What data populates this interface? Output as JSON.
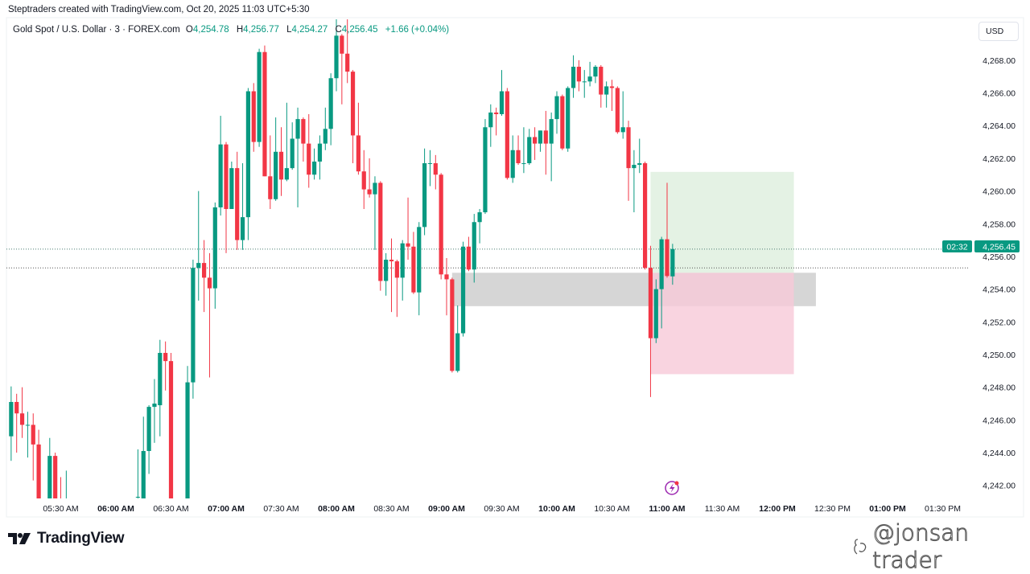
{
  "attribution": "Steptraders created with TradingView.com, Oct 20, 2025 11:03 UTC+5:30",
  "legend": {
    "symbol": "Gold Spot / U.S. Dollar · 3 · FOREX.com",
    "open_key": "O",
    "open": "4,254.78",
    "high_key": "H",
    "high": "4,256.77",
    "low_key": "L",
    "low": "4,254.27",
    "close_key": "C",
    "close": "4,256.45",
    "change": "+1.66 (+0.04%)"
  },
  "currency_button": "USD",
  "current_price_label": {
    "price": "4,256.45",
    "countdown": "02:32"
  },
  "logo": {
    "text": "TradingView",
    "icon": "tradingview-logo-icon"
  },
  "watermark": {
    "text": "@jonsan trader",
    "icon": "social-logo-icon"
  },
  "events_icon": "lightning-events-icon",
  "colors": {
    "up": "#089981",
    "down": "#F23645",
    "zone": "#c8c8c8",
    "target": "#dff0df",
    "stop": "#f8c9d8",
    "accent": "#9c27b0"
  },
  "chart_data": {
    "type": "candlestick",
    "interval": "3",
    "symbol": "Gold Spot / U.S. Dollar",
    "ylim": [
      4241.2,
      4270.6
    ],
    "y_ticks": [
      "4,268.00",
      "4,266.00",
      "4,264.00",
      "4,262.00",
      "4,260.00",
      "4,258.00",
      "4,256.00",
      "4,254.00",
      "4,252.00",
      "4,250.00",
      "4,248.00",
      "4,246.00",
      "4,244.00",
      "4,242.00"
    ],
    "x_ticks": [
      {
        "label": "05:30 AM",
        "bold": false
      },
      {
        "label": "06:00 AM",
        "bold": true
      },
      {
        "label": "06:30 AM",
        "bold": false
      },
      {
        "label": "07:00 AM",
        "bold": true
      },
      {
        "label": "07:30 AM",
        "bold": false
      },
      {
        "label": "08:00 AM",
        "bold": true
      },
      {
        "label": "08:30 AM",
        "bold": false
      },
      {
        "label": "09:00 AM",
        "bold": true
      },
      {
        "label": "09:30 AM",
        "bold": false
      },
      {
        "label": "10:00 AM",
        "bold": true
      },
      {
        "label": "10:30 AM",
        "bold": false
      },
      {
        "label": "11:00 AM",
        "bold": true
      },
      {
        "label": "11:30 AM",
        "bold": false
      },
      {
        "label": "12:00 PM",
        "bold": true
      },
      {
        "label": "12:30 PM",
        "bold": false
      },
      {
        "label": "01:00 PM",
        "bold": true
      },
      {
        "label": "01:30 PM",
        "bold": false
      }
    ],
    "price_lines": [
      4256.45,
      4255.3
    ],
    "zone": {
      "from": "09:03",
      "to": "12:21",
      "top": 4255.0,
      "bottom": 4252.96
    },
    "long_position": {
      "from": "10:51",
      "to": "12:09",
      "entry": 4255.0,
      "target": 4261.17,
      "stop": 4248.8
    },
    "candles_columns": [
      "time",
      "open",
      "high",
      "low",
      "close"
    ],
    "candles": [
      [
        "05:03",
        4245.0,
        4248.05,
        4243.5,
        4247.1
      ],
      [
        "05:06",
        4247.1,
        4247.6,
        4244.0,
        4246.4
      ],
      [
        "05:09",
        4246.4,
        4248.0,
        4244.9,
        4245.7
      ],
      [
        "05:12",
        4245.7,
        4246.5,
        4243.7,
        4245.7
      ],
      [
        "05:15",
        4245.7,
        4246.4,
        4242.3,
        4244.5
      ],
      [
        "05:18",
        4244.5,
        4245.4,
        4240.3,
        4240.5
      ],
      [
        "05:24",
        4240.5,
        4244.9,
        4240.3,
        4243.8
      ],
      [
        "05:27",
        4243.8,
        4244.0,
        4240.3,
        4240.5
      ],
      [
        "05:30",
        4240.6,
        4242.5,
        4240.2,
        4240.5
      ],
      [
        "05:33",
        4240.5,
        4242.9,
        4240.2,
        4240.6
      ],
      [
        "06:12",
        4241.3,
        4244.2,
        4241.2,
        4241.3
      ],
      [
        "06:15",
        4240.5,
        4246.2,
        4240.3,
        4244.1
      ],
      [
        "06:18",
        4244.1,
        4246.9,
        4242.7,
        4246.8
      ],
      [
        "06:21",
        4246.8,
        4248.5,
        4244.6,
        4247.0
      ],
      [
        "06:24",
        4246.9,
        4250.9,
        4245.0,
        4250.1
      ],
      [
        "06:27",
        4250.1,
        4250.8,
        4247.8,
        4249.6
      ],
      [
        "06:30",
        4249.6,
        4250.1,
        4240.3,
        4240.5
      ],
      [
        "06:39",
        4240.5,
        4249.3,
        4240.3,
        4248.3
      ],
      [
        "06:42",
        4248.3,
        4255.8,
        4247.3,
        4255.3
      ],
      [
        "06:45",
        4255.3,
        4260.0,
        4253.3,
        4255.6
      ],
      [
        "06:48",
        4255.6,
        4257.0,
        4252.6,
        4254.7
      ],
      [
        "06:51",
        4254.7,
        4256.2,
        4248.6,
        4254.05
      ],
      [
        "06:54",
        4254.05,
        4259.3,
        4252.8,
        4259.0
      ],
      [
        "06:57",
        4259.0,
        4264.6,
        4258.5,
        4262.85
      ],
      [
        "07:00",
        4262.85,
        4263.0,
        4256.2,
        4258.9
      ],
      [
        "07:03",
        4258.9,
        4261.8,
        4258.9,
        4261.4
      ],
      [
        "07:06",
        4261.4,
        4262.4,
        4256.4,
        4257.0
      ],
      [
        "07:09",
        4257.0,
        4261.7,
        4256.4,
        4258.4
      ],
      [
        "07:12",
        4258.4,
        4266.3,
        4257.0,
        4266.1
      ],
      [
        "07:15",
        4266.1,
        4266.6,
        4262.4,
        4263.0
      ],
      [
        "07:18",
        4263.0,
        4268.7,
        4262.7,
        4268.5
      ],
      [
        "07:21",
        4268.5,
        4268.9,
        4260.9,
        4260.9
      ],
      [
        "07:24",
        4260.9,
        4263.4,
        4258.9,
        4259.5
      ],
      [
        "07:27",
        4259.5,
        4264.5,
        4259.4,
        4262.4
      ],
      [
        "07:30",
        4262.4,
        4263.9,
        4259.7,
        4260.7
      ],
      [
        "07:33",
        4260.7,
        4265.4,
        4260.6,
        4261.4
      ],
      [
        "07:36",
        4261.4,
        4264.2,
        4261.3,
        4263.2
      ],
      [
        "07:39",
        4263.2,
        4265.1,
        4259.0,
        4264.4
      ],
      [
        "07:42",
        4264.4,
        4264.5,
        4261.8,
        4262.9
      ],
      [
        "07:45",
        4262.9,
        4264.7,
        4260.2,
        4261.0
      ],
      [
        "07:48",
        4261.0,
        4262.6,
        4260.7,
        4261.8
      ],
      [
        "07:51",
        4261.8,
        4263.4,
        4260.7,
        4262.9
      ],
      [
        "07:54",
        4262.9,
        4265.1,
        4262.5,
        4263.8
      ],
      [
        "07:57",
        4263.8,
        4267.2,
        4262.8,
        4266.9
      ],
      [
        "08:00",
        4266.9,
        4270.5,
        4266.1,
        4269.5
      ],
      [
        "08:03",
        4269.5,
        4269.6,
        4265.3,
        4268.4
      ],
      [
        "08:06",
        4268.4,
        4270.5,
        4266.6,
        4267.3
      ],
      [
        "08:09",
        4267.3,
        4267.4,
        4261.7,
        4263.4
      ],
      [
        "08:12",
        4263.4,
        4265.4,
        4261.0,
        4261.2
      ],
      [
        "08:15",
        4261.2,
        4262.5,
        4258.9,
        4260.1
      ],
      [
        "08:18",
        4260.1,
        4262.0,
        4259.6,
        4259.8
      ],
      [
        "08:21",
        4259.8,
        4260.9,
        4256.4,
        4260.5
      ],
      [
        "08:24",
        4260.5,
        4260.6,
        4253.9,
        4254.5
      ],
      [
        "08:27",
        4254.5,
        4256.2,
        4253.6,
        4255.8
      ],
      [
        "08:30",
        4255.8,
        4257.1,
        4252.6,
        4255.7
      ],
      [
        "08:33",
        4255.7,
        4255.8,
        4252.3,
        4254.7
      ],
      [
        "08:36",
        4254.7,
        4257.0,
        4253.3,
        4256.8
      ],
      [
        "08:39",
        4256.8,
        4259.6,
        4255.8,
        4256.6
      ],
      [
        "08:42",
        4256.6,
        4257.5,
        4253.7,
        4253.8
      ],
      [
        "08:45",
        4253.8,
        4258.1,
        4252.4,
        4257.8
      ],
      [
        "08:48",
        4257.8,
        4262.6,
        4257.3,
        4261.7
      ],
      [
        "08:51",
        4261.7,
        4262.5,
        4260.3,
        4261.7
      ],
      [
        "08:54",
        4261.7,
        4262.2,
        4260.1,
        4261.0
      ],
      [
        "08:57",
        4261.0,
        4261.1,
        4254.6,
        4254.9
      ],
      [
        "09:00",
        4254.9,
        4255.9,
        4252.4,
        4254.6
      ],
      [
        "09:03",
        4254.6,
        4254.7,
        4248.9,
        4249.0
      ],
      [
        "09:06",
        4249.0,
        4253.0,
        4248.9,
        4251.3
      ],
      [
        "09:09",
        4251.3,
        4256.9,
        4251.1,
        4256.6
      ],
      [
        "09:12",
        4256.6,
        4257.2,
        4255.1,
        4255.2
      ],
      [
        "09:15",
        4255.2,
        4258.6,
        4254.4,
        4258.1
      ],
      [
        "09:18",
        4258.1,
        4258.9,
        4256.8,
        4258.7
      ],
      [
        "09:21",
        4258.7,
        4264.4,
        4258.6,
        4263.9
      ],
      [
        "09:24",
        4263.9,
        4265.3,
        4262.7,
        4264.8
      ],
      [
        "09:27",
        4264.8,
        4265.1,
        4263.4,
        4264.7
      ],
      [
        "09:30",
        4264.7,
        4267.4,
        4264.6,
        4266.1
      ],
      [
        "09:33",
        4266.1,
        4266.3,
        4260.7,
        4260.8
      ],
      [
        "09:36",
        4260.8,
        4263.4,
        4260.5,
        4262.5
      ],
      [
        "09:39",
        4262.5,
        4263.4,
        4261.6,
        4261.7
      ],
      [
        "09:42",
        4261.7,
        4263.9,
        4261.1,
        4261.7
      ],
      [
        "09:45",
        4261.7,
        4263.8,
        4261.6,
        4263.3
      ],
      [
        "09:48",
        4263.3,
        4263.9,
        4261.9,
        4262.9
      ],
      [
        "09:51",
        4262.9,
        4263.7,
        4262.4,
        4263.7
      ],
      [
        "09:54",
        4263.7,
        4264.9,
        4261.0,
        4262.9
      ],
      [
        "09:57",
        4262.9,
        4264.8,
        4260.6,
        4264.4
      ],
      [
        "10:00",
        4264.4,
        4266.1,
        4263.5,
        4265.8
      ],
      [
        "10:03",
        4265.8,
        4265.9,
        4262.5,
        4262.6
      ],
      [
        "10:06",
        4262.6,
        4266.4,
        4262.4,
        4266.3
      ],
      [
        "10:09",
        4266.3,
        4268.3,
        4265.7,
        4267.6
      ],
      [
        "10:12",
        4267.6,
        4268.0,
        4266.1,
        4266.7
      ],
      [
        "10:15",
        4266.7,
        4267.4,
        4265.7,
        4266.7
      ],
      [
        "10:18",
        4266.7,
        4267.9,
        4266.4,
        4267.0
      ],
      [
        "10:21",
        4267.0,
        4267.7,
        4266.6,
        4267.6
      ],
      [
        "10:24",
        4267.6,
        4267.7,
        4265.1,
        4265.9
      ],
      [
        "10:27",
        4265.9,
        4266.7,
        4265.1,
        4266.4
      ],
      [
        "10:30",
        4266.4,
        4266.8,
        4264.9,
        4266.3
      ],
      [
        "10:33",
        4266.3,
        4266.4,
        4263.5,
        4263.6
      ],
      [
        "10:36",
        4263.6,
        4266.1,
        4263.2,
        4263.9
      ],
      [
        "10:39",
        4263.9,
        4264.3,
        4259.4,
        4261.4
      ],
      [
        "10:42",
        4261.4,
        4262.5,
        4258.7,
        4261.6
      ],
      [
        "10:45",
        4261.6,
        4263.2,
        4261.1,
        4261.7
      ],
      [
        "10:48",
        4261.7,
        4261.8,
        4255.2,
        4255.3
      ],
      [
        "10:51",
        4255.3,
        4256.65,
        4247.4,
        4251.0
      ],
      [
        "10:54",
        4251.0,
        4254.6,
        4250.7,
        4254.0
      ],
      [
        "10:57",
        4254.0,
        4257.2,
        4251.6,
        4257.05
      ],
      [
        "11:00",
        4257.05,
        4260.5,
        4254.7,
        4254.8
      ],
      [
        "11:03",
        4254.78,
        4256.77,
        4254.27,
        4256.45
      ]
    ]
  }
}
